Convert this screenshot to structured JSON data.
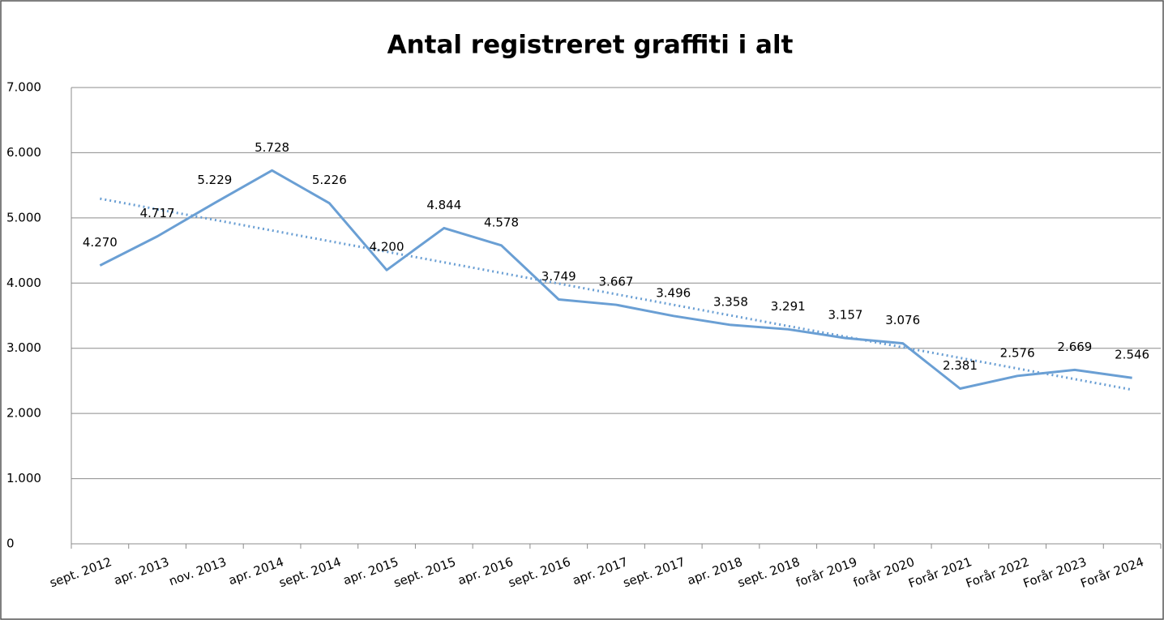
{
  "chart_data": {
    "type": "line",
    "title": "Antal registreret graffiti i alt",
    "categories": [
      "sept. 2012",
      "apr. 2013",
      "nov. 2013",
      "apr. 2014",
      "sept. 2014",
      "apr. 2015",
      "sept. 2015",
      "apr. 2016",
      "sept. 2016",
      "apr. 2017",
      "sept. 2017",
      "apr. 2018",
      "sept. 2018",
      "forår 2019",
      "forår 2020",
      "Forår 2021",
      "Forår 2022",
      "Forår 2023",
      "Forår 2024"
    ],
    "series": [
      {
        "color": "#6a9fd4",
        "values": [
          4270,
          4717,
          5229,
          5728,
          5226,
          4200,
          4844,
          4578,
          3749,
          3667,
          3496,
          3358,
          3291,
          3157,
          3076,
          2381,
          2576,
          2669,
          2546
        ],
        "value_labels": [
          "4.270",
          "4.717",
          "5.229",
          "5.728",
          "5.226",
          "4.200",
          "4.844",
          "4.578",
          "3.749",
          "3.667",
          "3.496",
          "3.358",
          "3.291",
          "3.157",
          "3.076",
          "2.381",
          "2.576",
          "2.669",
          "2.546"
        ]
      }
    ],
    "trendline": "linear",
    "ylim": [
      0,
      7000
    ],
    "yticks": [
      0,
      {
        "value": 1000,
        "label": "1.000"
      },
      {
        "value": 2000,
        "label": "2.000"
      },
      {
        "value": 3000,
        "label": "3.000"
      },
      {
        "value": 4000,
        "label": "4.000"
      },
      {
        "value": 5000,
        "label": "5.000"
      },
      {
        "value": 6000,
        "label": "6.000"
      },
      {
        "value": 7000,
        "label": "7.000"
      }
    ],
    "grid": true
  }
}
